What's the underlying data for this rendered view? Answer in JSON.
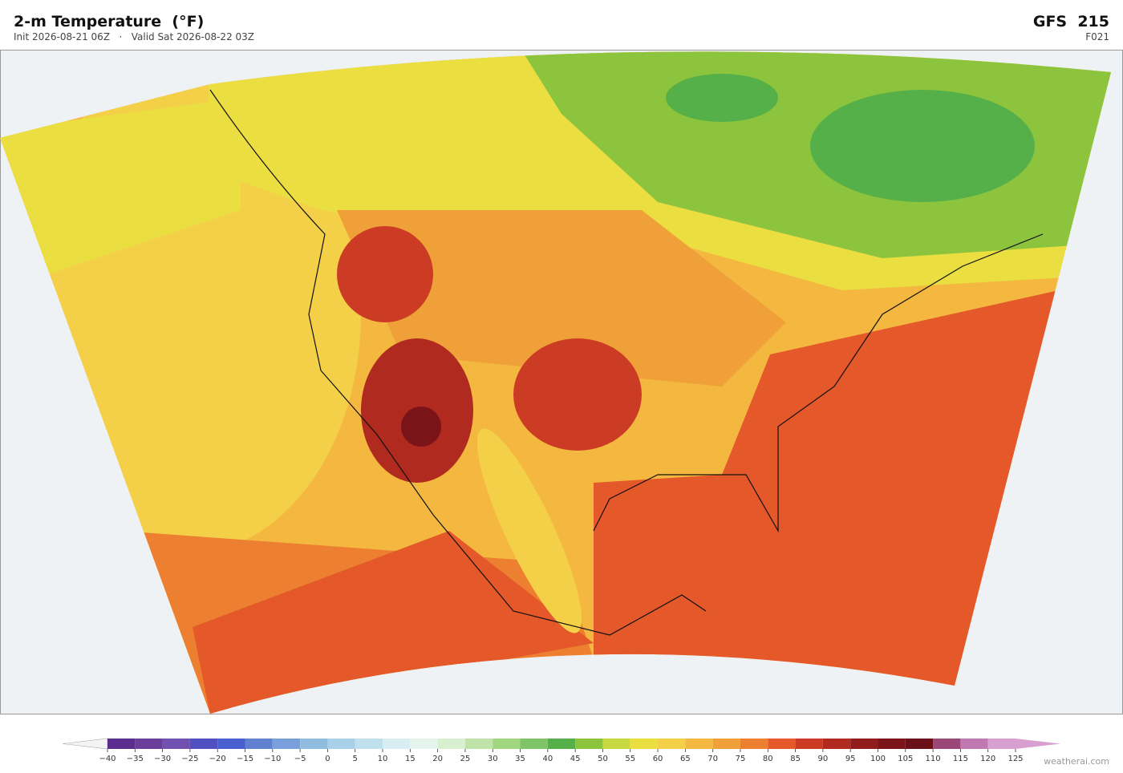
{
  "header": {
    "title": "2-m Temperature  (°F)",
    "subtitle": "Init 2026-08-21 06Z   ·   Valid Sat 2026-08-22 03Z",
    "model": "GFS  215",
    "forecast_hour": "F021"
  },
  "colorbar": {
    "ticks": [
      {
        "value": -40,
        "label": "−40"
      },
      {
        "value": -35,
        "label": "−35"
      },
      {
        "value": -30,
        "label": "−30"
      },
      {
        "value": -25,
        "label": "−25"
      },
      {
        "value": -20,
        "label": "−20"
      },
      {
        "value": -15,
        "label": "−15"
      },
      {
        "value": -10,
        "label": "−10"
      },
      {
        "value": -5,
        "label": "−5"
      },
      0,
      5,
      10,
      15,
      20,
      25,
      30,
      35,
      40,
      45,
      50,
      55,
      60,
      65,
      70,
      75,
      80,
      85,
      90,
      95,
      100,
      105,
      110,
      115,
      120,
      125
    ],
    "colors": [
      "#5b2d8e",
      "#6a3d9a",
      "#7050b0",
      "#5050c0",
      "#4a60d0",
      "#6080d0",
      "#7aa0dc",
      "#90bce0",
      "#a8d0e8",
      "#c0e0ee",
      "#d8eef2",
      "#e6f4ee",
      "#d8efd0",
      "#bfe3a8",
      "#9fd67e",
      "#7fc466",
      "#55b04a",
      "#8cc43e",
      "#c8d840",
      "#eade40",
      "#f4d048",
      "#f4b840",
      "#f0a038",
      "#ec8030",
      "#e4582a",
      "#cc3c24",
      "#b02a20",
      "#901c1c",
      "#7a1418",
      "#6a1018",
      "#9a4878",
      "#c078b0",
      "#d8a0d0"
    ]
  },
  "footer": {
    "credit": "weatherai.com"
  }
}
